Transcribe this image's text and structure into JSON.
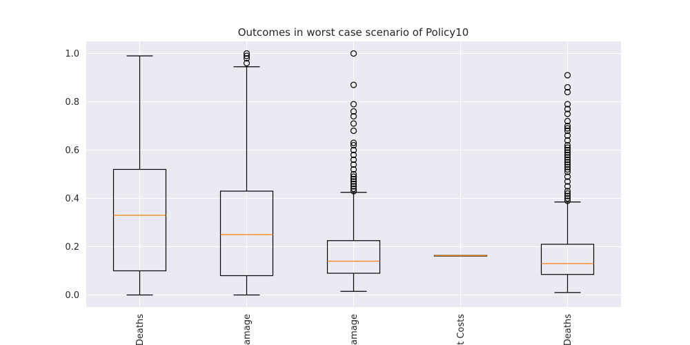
{
  "chart_data": {
    "type": "box",
    "title": "Outcomes in worst case scenario of Policy10",
    "xlabel": "",
    "ylabel": "",
    "ylim": [
      -0.05,
      1.05
    ],
    "yticks": [
      "0.0",
      "0.2",
      "0.4",
      "0.6",
      "0.8",
      "1.0"
    ],
    "grid": true,
    "background": "#eaeaf2",
    "box_color": "#000000",
    "median_color": "#ff7f0e",
    "categories": [
      "Deaths",
      "Damage",
      "Damage",
      "t Costs",
      "Deaths"
    ],
    "boxes": [
      {
        "whislo": 0.0,
        "q1": 0.1,
        "med": 0.33,
        "q3": 0.52,
        "whishi": 0.99,
        "fliers": []
      },
      {
        "whislo": 0.0,
        "q1": 0.08,
        "med": 0.25,
        "q3": 0.43,
        "whishi": 0.945,
        "fliers": [
          0.96,
          0.98,
          0.99,
          1.0
        ]
      },
      {
        "whislo": 0.015,
        "q1": 0.09,
        "med": 0.14,
        "q3": 0.225,
        "whishi": 0.425,
        "fliers": [
          0.43,
          0.44,
          0.45,
          0.46,
          0.47,
          0.48,
          0.49,
          0.5,
          0.52,
          0.54,
          0.56,
          0.58,
          0.6,
          0.62,
          0.63,
          0.68,
          0.71,
          0.74,
          0.76,
          0.79,
          0.87,
          1.0
        ]
      },
      {
        "whislo": 0.162,
        "q1": 0.162,
        "med": 0.163,
        "q3": 0.164,
        "whishi": 0.164,
        "fliers": []
      },
      {
        "whislo": 0.01,
        "q1": 0.085,
        "med": 0.13,
        "q3": 0.21,
        "whishi": 0.385,
        "fliers": [
          0.39,
          0.4,
          0.41,
          0.42,
          0.43,
          0.45,
          0.47,
          0.49,
          0.51,
          0.52,
          0.53,
          0.54,
          0.55,
          0.56,
          0.57,
          0.58,
          0.59,
          0.6,
          0.61,
          0.62,
          0.64,
          0.66,
          0.68,
          0.69,
          0.7,
          0.72,
          0.75,
          0.77,
          0.79,
          0.84,
          0.86,
          0.91
        ]
      }
    ]
  }
}
